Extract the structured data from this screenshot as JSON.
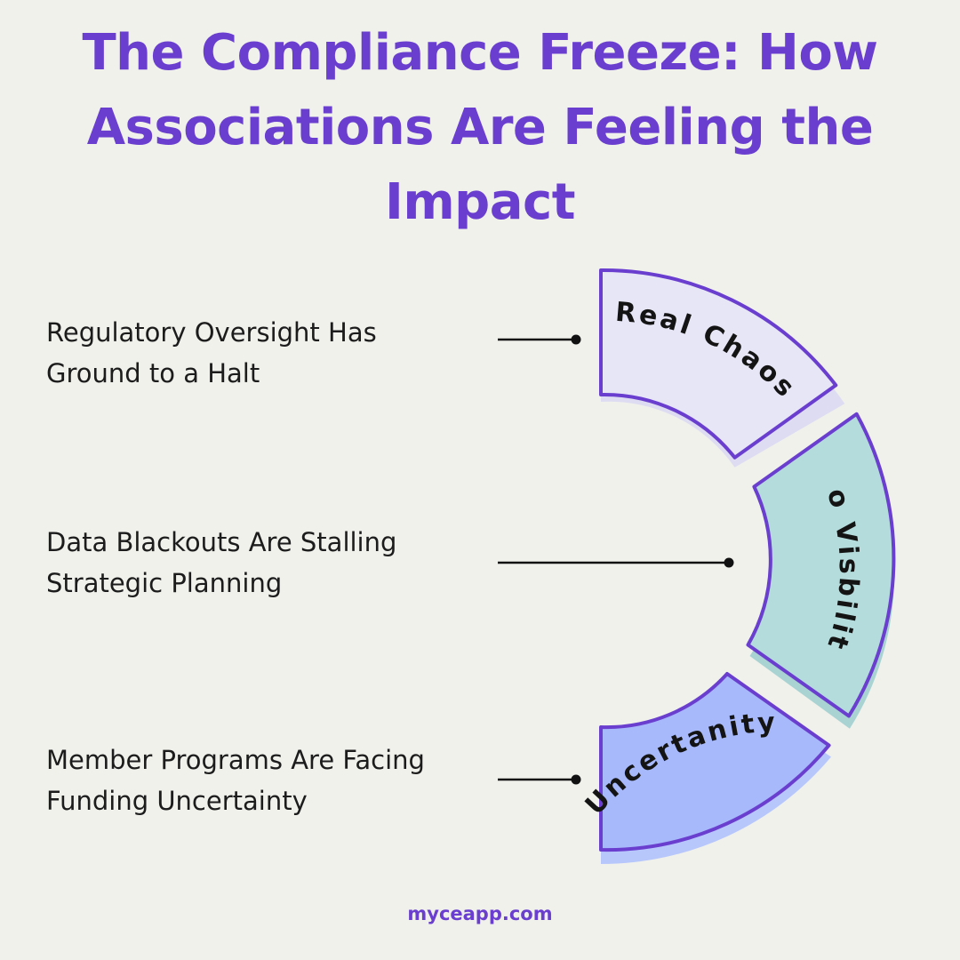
{
  "title": {
    "lines": [
      "The Compliance Freeze: How",
      "Associations Are Feeling the",
      "Impact"
    ]
  },
  "items": [
    {
      "text_lines": [
        "Regulatory Oversight Has",
        "Ground to a Halt"
      ],
      "segment_label": "Real Chaos",
      "segment_fill": "#e7e6f6",
      "segment_shadow": "#dddcf2"
    },
    {
      "text_lines": [
        "Data Blackouts Are Stalling",
        "Strategic Planning"
      ],
      "segment_label": "No Visbility",
      "segment_fill": "#b5dcdc",
      "segment_shadow": "#a9d3d3"
    },
    {
      "text_lines": [
        "Member Programs Are Facing",
        "Funding Uncertainty"
      ],
      "segment_label": "Uncertanity",
      "segment_fill": "#a7b9fb",
      "segment_shadow": "#b8c7fb"
    }
  ],
  "colors": {
    "accent": "#6a3fcf",
    "background": "#f0f1eb",
    "segment_stroke": "#6a3fcf",
    "text": "#1c1c1c"
  },
  "footer": {
    "text": "myceapp.com"
  }
}
